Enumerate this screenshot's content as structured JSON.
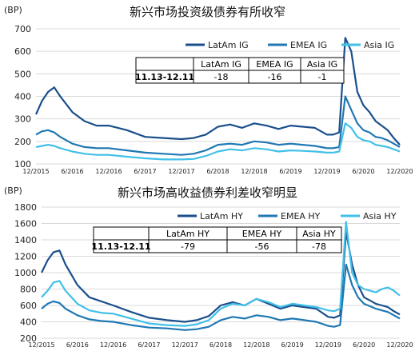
{
  "chart_data": [
    {
      "type": "line",
      "title": "新兴市场投资级债券有所收窄",
      "unit_label": "(BP)",
      "ylim": [
        100,
        700
      ],
      "yticks": [
        100,
        200,
        300,
        400,
        500,
        600,
        700
      ],
      "x_range": [
        "2015-12",
        "2020-12"
      ],
      "xticks": [
        "12/2015",
        "6/2016",
        "12/2016",
        "6/2017",
        "12/2017",
        "6/2018",
        "12/2018",
        "6/2019",
        "12/2019",
        "6/2020",
        "12/2020"
      ],
      "grid": true,
      "legend_position": "top-right",
      "series": [
        {
          "name": "LatAm IG",
          "color": "#1a4f8b",
          "x": [
            "2015-12",
            "2016-01",
            "2016-02",
            "2016-03",
            "2016-04",
            "2016-06",
            "2016-08",
            "2016-10",
            "2016-12",
            "2017-03",
            "2017-06",
            "2017-09",
            "2017-12",
            "2018-02",
            "2018-04",
            "2018-06",
            "2018-08",
            "2018-10",
            "2018-12",
            "2019-02",
            "2019-04",
            "2019-06",
            "2019-08",
            "2019-10",
            "2019-12",
            "2020-01",
            "2020-02",
            "2020-03",
            "2020-04",
            "2020-05",
            "2020-06",
            "2020-07",
            "2020-08",
            "2020-09",
            "2020-10",
            "2020-11",
            "2020-12"
          ],
          "y": [
            320,
            380,
            420,
            440,
            400,
            330,
            290,
            270,
            270,
            250,
            220,
            215,
            210,
            215,
            230,
            265,
            275,
            260,
            280,
            270,
            255,
            270,
            265,
            260,
            230,
            230,
            240,
            660,
            600,
            420,
            360,
            330,
            290,
            270,
            250,
            215,
            185
          ]
        },
        {
          "name": "EMEA IG",
          "color": "#1f78b4",
          "x": [
            "2015-12",
            "2016-01",
            "2016-02",
            "2016-03",
            "2016-04",
            "2016-06",
            "2016-08",
            "2016-10",
            "2016-12",
            "2017-03",
            "2017-06",
            "2017-09",
            "2017-12",
            "2018-02",
            "2018-04",
            "2018-06",
            "2018-08",
            "2018-10",
            "2018-12",
            "2019-02",
            "2019-04",
            "2019-06",
            "2019-08",
            "2019-10",
            "2019-12",
            "2020-01",
            "2020-02",
            "2020-03",
            "2020-04",
            "2020-05",
            "2020-06",
            "2020-07",
            "2020-08",
            "2020-09",
            "2020-10",
            "2020-11",
            "2020-12"
          ],
          "y": [
            230,
            245,
            250,
            240,
            220,
            190,
            175,
            170,
            170,
            160,
            150,
            145,
            140,
            145,
            160,
            185,
            190,
            185,
            200,
            195,
            185,
            190,
            185,
            180,
            170,
            170,
            175,
            400,
            340,
            280,
            250,
            240,
            220,
            215,
            205,
            190,
            175
          ]
        },
        {
          "name": "Asia IG",
          "color": "#41c0e8",
          "x": [
            "2015-12",
            "2016-01",
            "2016-02",
            "2016-03",
            "2016-04",
            "2016-06",
            "2016-08",
            "2016-10",
            "2016-12",
            "2017-03",
            "2017-06",
            "2017-09",
            "2017-12",
            "2018-02",
            "2018-04",
            "2018-06",
            "2018-08",
            "2018-10",
            "2018-12",
            "2019-02",
            "2019-04",
            "2019-06",
            "2019-08",
            "2019-10",
            "2019-12",
            "2020-01",
            "2020-02",
            "2020-03",
            "2020-04",
            "2020-05",
            "2020-06",
            "2020-07",
            "2020-08",
            "2020-09",
            "2020-10",
            "2020-11",
            "2020-12"
          ],
          "y": [
            175,
            180,
            185,
            180,
            170,
            155,
            145,
            140,
            140,
            132,
            125,
            120,
            120,
            122,
            135,
            155,
            165,
            160,
            170,
            165,
            155,
            160,
            158,
            155,
            150,
            150,
            155,
            280,
            260,
            220,
            205,
            200,
            185,
            180,
            175,
            165,
            155
          ]
        }
      ],
      "table": {
        "headers": [
          "",
          "LatAm IG",
          "EMEA  IG",
          "Asia IG"
        ],
        "rows": [
          [
            "11.13-12.11",
            "-18",
            "-16",
            "-1"
          ]
        ]
      }
    },
    {
      "type": "line",
      "title": "新兴市场高收益债券利差收窄明显",
      "unit_label": "(BP)",
      "ylim": [
        200,
        1800
      ],
      "yticks": [
        200,
        400,
        600,
        800,
        1000,
        1200,
        1400,
        1600,
        1800
      ],
      "x_range": [
        "2015-12",
        "2020-12"
      ],
      "xticks": [
        "12/2015",
        "6/2016",
        "12/2016",
        "6/2017",
        "12/2017",
        "6/2018",
        "12/2018",
        "6/2019",
        "12/2019",
        "6/2020",
        "12/2020"
      ],
      "grid": true,
      "legend_position": "top-right",
      "series": [
        {
          "name": "LatAm HY",
          "color": "#1a4f8b",
          "x": [
            "2015-12",
            "2016-01",
            "2016-02",
            "2016-03",
            "2016-04",
            "2016-06",
            "2016-08",
            "2016-10",
            "2016-12",
            "2017-03",
            "2017-06",
            "2017-09",
            "2017-12",
            "2018-02",
            "2018-04",
            "2018-06",
            "2018-08",
            "2018-10",
            "2018-12",
            "2019-02",
            "2019-04",
            "2019-06",
            "2019-08",
            "2019-10",
            "2019-12",
            "2020-01",
            "2020-02",
            "2020-03",
            "2020-04",
            "2020-05",
            "2020-06",
            "2020-07",
            "2020-08",
            "2020-09",
            "2020-10",
            "2020-11",
            "2020-12"
          ],
          "y": [
            1000,
            1150,
            1250,
            1270,
            1100,
            850,
            700,
            650,
            600,
            520,
            450,
            420,
            400,
            420,
            470,
            600,
            640,
            600,
            680,
            620,
            560,
            600,
            580,
            560,
            460,
            450,
            480,
            1500,
            1100,
            850,
            700,
            660,
            620,
            600,
            580,
            530,
            490
          ]
        },
        {
          "name": "EMEA HY",
          "color": "#1f78b4",
          "x": [
            "2015-12",
            "2016-01",
            "2016-02",
            "2016-03",
            "2016-04",
            "2016-06",
            "2016-08",
            "2016-10",
            "2016-12",
            "2017-03",
            "2017-06",
            "2017-09",
            "2017-12",
            "2018-02",
            "2018-04",
            "2018-06",
            "2018-08",
            "2018-10",
            "2018-12",
            "2019-02",
            "2019-04",
            "2019-06",
            "2019-08",
            "2019-10",
            "2019-12",
            "2020-01",
            "2020-02",
            "2020-03",
            "2020-04",
            "2020-05",
            "2020-06",
            "2020-07",
            "2020-08",
            "2020-09",
            "2020-10",
            "2020-11",
            "2020-12"
          ],
          "y": [
            560,
            620,
            650,
            630,
            560,
            480,
            430,
            410,
            400,
            360,
            330,
            320,
            300,
            310,
            340,
            420,
            460,
            440,
            480,
            460,
            420,
            440,
            420,
            400,
            350,
            340,
            360,
            1100,
            850,
            700,
            620,
            590,
            560,
            540,
            520,
            480,
            440
          ]
        },
        {
          "name": "Asia HY",
          "color": "#41c0e8",
          "x": [
            "2015-12",
            "2016-01",
            "2016-02",
            "2016-03",
            "2016-04",
            "2016-06",
            "2016-08",
            "2016-10",
            "2016-12",
            "2017-03",
            "2017-06",
            "2017-09",
            "2017-12",
            "2018-02",
            "2018-04",
            "2018-06",
            "2018-08",
            "2018-10",
            "2018-12",
            "2019-02",
            "2019-04",
            "2019-06",
            "2019-08",
            "2019-10",
            "2019-12",
            "2020-01",
            "2020-02",
            "2020-03",
            "2020-04",
            "2020-05",
            "2020-06",
            "2020-07",
            "2020-08",
            "2020-09",
            "2020-10",
            "2020-11",
            "2020-12"
          ],
          "y": [
            700,
            780,
            880,
            900,
            780,
            620,
            540,
            510,
            500,
            440,
            380,
            360,
            350,
            370,
            420,
            560,
            620,
            600,
            680,
            640,
            580,
            620,
            600,
            580,
            540,
            530,
            560,
            1620,
            1000,
            850,
            800,
            780,
            760,
            800,
            820,
            780,
            720
          ]
        }
      ],
      "table": {
        "headers": [
          "",
          "LatAm HY",
          "EMEA  HY",
          "Asia HY"
        ],
        "rows": [
          [
            "11.13-12.11",
            "-79",
            "-56",
            "-78"
          ]
        ]
      }
    }
  ]
}
